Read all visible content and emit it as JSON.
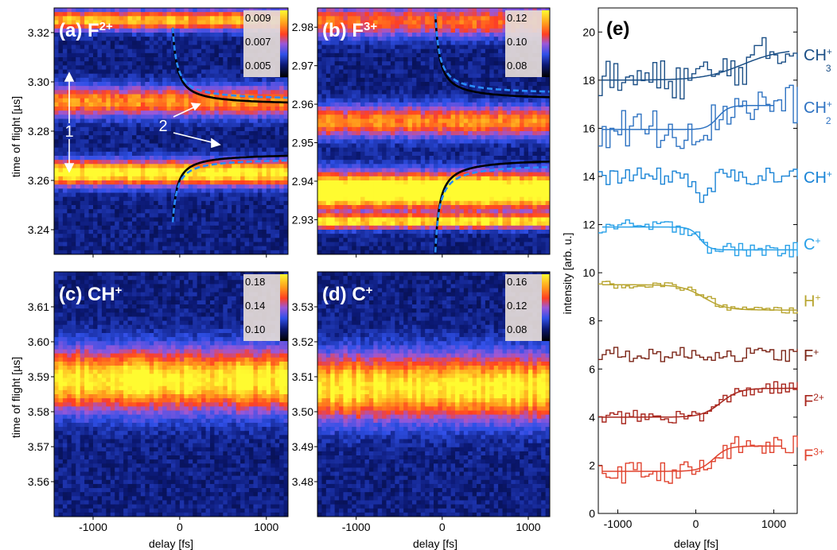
{
  "figure": {
    "y_axis_label_left": "time of flight [µs]",
    "x_axis_label": "delay [fs]",
    "x_ticks": [
      "-1000",
      "0",
      "1000"
    ]
  },
  "chart_data": [
    {
      "type": "heatmap",
      "panel": "(a)",
      "species": "F",
      "charge": "2+",
      "xlabel": "",
      "ylabel": "time of flight [µs]",
      "xlim": [
        -1450,
        1250
      ],
      "ylim": [
        3.23,
        3.33
      ],
      "y_ticks": [
        "3.24",
        "3.26",
        "3.28",
        "3.30",
        "3.32"
      ],
      "colorbar_ticks": [
        "0.009",
        "0.007",
        "0.005"
      ],
      "colorbar_range": [
        0.0035,
        0.0095
      ],
      "bands": [
        {
          "tof": 3.263,
          "intensity": 0.0085,
          "width": 0.005
        },
        {
          "tof": 3.292,
          "intensity": 0.007,
          "width": 0.006
        },
        {
          "tof": 3.325,
          "intensity": 0.0075,
          "width": 0.004
        }
      ],
      "annotations": {
        "label_1": "1",
        "label_2": "2"
      },
      "fit_curves": [
        {
          "style": "solid",
          "color": "#000000",
          "asymptote": 3.2905,
          "start_delay": -80,
          "start_tof": 3.322
        },
        {
          "style": "dashed",
          "color": "#2a8cff",
          "asymptote": 3.2925,
          "start_delay": -80,
          "start_tof": 3.322
        },
        {
          "style": "solid",
          "color": "#000000",
          "asymptote": 3.271,
          "start_delay": -80,
          "start_tof": 3.243
        },
        {
          "style": "dashed",
          "color": "#2a8cff",
          "asymptote": 3.269,
          "start_delay": -80,
          "start_tof": 3.243
        }
      ]
    },
    {
      "type": "heatmap",
      "panel": "(b)",
      "species": "F",
      "charge": "3+",
      "xlabel": "",
      "ylabel": "",
      "xlim": [
        -1450,
        1250
      ],
      "ylim": [
        2.921,
        2.985
      ],
      "y_ticks": [
        "2.93",
        "2.94",
        "2.95",
        "2.96",
        "2.97",
        "2.98"
      ],
      "colorbar_ticks": [
        "0.12",
        "0.10",
        "0.08"
      ],
      "colorbar_range": [
        0.07,
        0.13
      ],
      "bands": [
        {
          "tof": 2.9375,
          "intensity": 0.135,
          "width": 0.0045
        },
        {
          "tof": 2.9295,
          "intensity": 0.115,
          "width": 0.0018
        },
        {
          "tof": 2.9555,
          "intensity": 0.105,
          "width": 0.004
        },
        {
          "tof": 2.9815,
          "intensity": 0.1,
          "width": 0.004
        }
      ],
      "fit_curves": [
        {
          "style": "solid",
          "color": "#000000",
          "asymptote": 2.961,
          "start_delay": -80,
          "start_tof": 2.9835
        },
        {
          "style": "dashed",
          "color": "#2a8cff",
          "asymptote": 2.9625,
          "start_delay": -80,
          "start_tof": 2.9835
        },
        {
          "style": "solid",
          "color": "#000000",
          "asymptote": 2.946,
          "start_delay": -80,
          "start_tof": 2.9215
        },
        {
          "style": "dashed",
          "color": "#2a8cff",
          "asymptote": 2.9445,
          "start_delay": -80,
          "start_tof": 2.9215
        }
      ]
    },
    {
      "type": "heatmap",
      "panel": "(c)",
      "species": "CH",
      "charge": "+",
      "xlabel": "delay [fs]",
      "ylabel": "time of flight [µs]",
      "xlim": [
        -1450,
        1250
      ],
      "ylim": [
        3.55,
        3.62
      ],
      "y_ticks": [
        "3.56",
        "3.57",
        "3.58",
        "3.59",
        "3.60",
        "3.61"
      ],
      "colorbar_ticks": [
        "0.18",
        "0.14",
        "0.10"
      ],
      "colorbar_range": [
        0.07,
        0.19
      ],
      "bands": [
        {
          "tof": 3.589,
          "intensity": 0.17,
          "width": 0.0085
        }
      ]
    },
    {
      "type": "heatmap",
      "panel": "(d)",
      "species": "C",
      "charge": "+",
      "xlabel": "delay [fs]",
      "ylabel": "",
      "xlim": [
        -1450,
        1250
      ],
      "ylim": [
        3.47,
        3.54
      ],
      "y_ticks": [
        "3.48",
        "3.49",
        "3.50",
        "3.51",
        "3.52",
        "3.53"
      ],
      "colorbar_ticks": [
        "0.16",
        "0.12",
        "0.08"
      ],
      "colorbar_range": [
        0.06,
        0.17
      ],
      "bands": [
        {
          "tof": 3.507,
          "intensity": 0.15,
          "width": 0.009
        }
      ]
    },
    {
      "type": "line",
      "panel": "(e)",
      "xlabel": "delay [fs]",
      "ylabel": "intensity [arb. u.]",
      "xlim": [
        -1250,
        1300
      ],
      "ylim": [
        0,
        21
      ],
      "x_ticks": [
        "-1000",
        "0",
        "1000"
      ],
      "y_ticks": [
        "0",
        "2",
        "4",
        "6",
        "8",
        "10",
        "12",
        "14",
        "16",
        "18",
        "20"
      ],
      "step_fs": 50,
      "series": [
        {
          "name": "CH",
          "charge": "+",
          "subscript": "3",
          "color": "#1b4f86",
          "baseline": 18.3,
          "noise": 0.85,
          "step": {
            "center": 600,
            "from": 18.0,
            "to": 19.3,
            "width": 250
          },
          "fit": {
            "x": [
              -1200,
              1200
            ],
            "from": 18.0,
            "to": 19.3,
            "center": 600,
            "width": 250
          }
        },
        {
          "name": "CH",
          "charge": "+",
          "subscript": "2",
          "color": "#2f73c2",
          "baseline": 16.3,
          "noise": 0.85,
          "step": {
            "center": 280,
            "from": 16.0,
            "to": 17.0,
            "width": 70
          },
          "fit": {
            "x": [
              -1200,
              1000
            ],
            "from": 15.95,
            "to": 16.95,
            "center": 280,
            "width": 70
          }
        },
        {
          "name": "CH",
          "charge": "+",
          "subscript": "",
          "color": "#1a84d6",
          "baseline": 14.0,
          "noise": 0.35,
          "dip": {
            "center": 80,
            "depth": 1.0,
            "width": 60
          }
        },
        {
          "name": "C",
          "charge": "+",
          "subscript": "",
          "color": "#2aa1e8",
          "baseline": 11.8,
          "noise": 0.3,
          "step": {
            "center": 50,
            "from": 11.9,
            "to": 10.95,
            "width": 60
          },
          "fit": {
            "x": [
              -1200,
              1300
            ],
            "from": 11.9,
            "to": 10.95,
            "center": 50,
            "width": 60
          }
        },
        {
          "name": "H",
          "charge": "+",
          "subscript": "",
          "color": "#b8a530",
          "baseline": 9.5,
          "noise": 0.15,
          "step": {
            "center": 100,
            "from": 9.5,
            "to": 8.45,
            "width": 140
          },
          "fit": {
            "x": [
              -1200,
              1300
            ],
            "from": 9.5,
            "to": 8.45,
            "center": 100,
            "width": 140
          }
        },
        {
          "name": "F",
          "charge": "+",
          "subscript": "",
          "color": "#7a2416",
          "baseline": 6.6,
          "noise": 0.3
        },
        {
          "name": "F",
          "charge": "2+",
          "subscript": "",
          "color": "#a8261d",
          "baseline": 4.0,
          "noise": 0.28,
          "step": {
            "center": 320,
            "from": 4.0,
            "to": 5.2,
            "width": 120
          },
          "fit": {
            "x": [
              -1200,
              1300
            ],
            "from": 4.0,
            "to": 5.2,
            "center": 320,
            "width": 120
          }
        },
        {
          "name": "F",
          "charge": "3+",
          "subscript": "",
          "color": "#e0432f",
          "baseline": 1.8,
          "noise": 0.45,
          "step": {
            "center": 230,
            "from": 1.7,
            "to": 2.8,
            "width": 90
          },
          "fit": {
            "x": [
              -1200,
              1100
            ],
            "from": 1.75,
            "to": 2.8,
            "center": 230,
            "width": 90
          }
        }
      ]
    }
  ]
}
